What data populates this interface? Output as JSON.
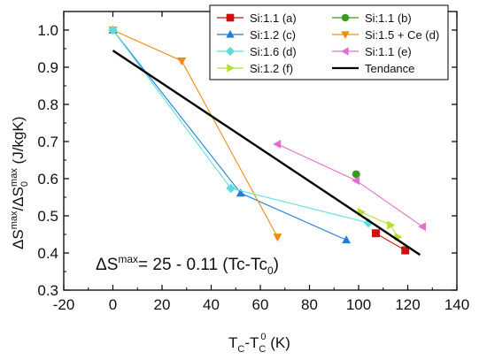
{
  "chart_data": {
    "type": "scatter",
    "xlabel": {
      "main": "T",
      "sub1": "C",
      "dash": "-T",
      "sub2": "C",
      "sup2": "0",
      "unit": " (K)"
    },
    "ylabel": {
      "a": "ΔS",
      "sup1": "max",
      "b": "/ΔS",
      "sub2": "0",
      "sup2": "max",
      "unit": " (J/kgK)"
    },
    "xlim": [
      -20,
      140
    ],
    "ylim": [
      0.3,
      1.05
    ],
    "xticks": [
      -20,
      0,
      20,
      40,
      60,
      80,
      100,
      120,
      140
    ],
    "yticks": [
      0.3,
      0.4,
      0.5,
      0.6,
      0.7,
      0.8,
      0.9,
      1.0
    ],
    "ytick_labels": [
      "0.3",
      "0.4",
      "0.5",
      "0.6",
      "0.7",
      "0.8",
      "0.9",
      "1.0"
    ],
    "legend_position": "top-right",
    "annotation": {
      "a": "ΔS",
      "sup": "max",
      "b": "= 25 - 0.11 (Tc-Tc",
      "sub": "0",
      "c": ")"
    },
    "series": [
      {
        "name": "Si:1.1 (a)",
        "marker": "square",
        "color": "#d01010",
        "x": [
          107,
          119
        ],
        "y": [
          0.453,
          0.407
        ]
      },
      {
        "name": "Si:1.1 (b)",
        "marker": "circle",
        "color": "#3a9a1e",
        "x": [
          99
        ],
        "y": [
          0.612
        ]
      },
      {
        "name": "Si:1.2 (c)",
        "marker": "triangle-up",
        "color": "#1f7fd8",
        "x": [
          0,
          52,
          95
        ],
        "y": [
          1.0,
          0.561,
          0.435
        ]
      },
      {
        "name": "Si:1.5 + Ce (d)",
        "marker": "triangle-down",
        "color": "#f08c10",
        "x": [
          0,
          28,
          67
        ],
        "y": [
          1.0,
          0.917,
          0.443
        ]
      },
      {
        "name": "Si:1.6 (d)",
        "marker": "diamond",
        "color": "#5fdcdc",
        "x": [
          0,
          48,
          104
        ],
        "y": [
          1.0,
          0.574,
          0.481
        ]
      },
      {
        "name": "Si:1.1 (e)",
        "marker": "triangle-left",
        "color": "#e070d0",
        "x": [
          67,
          99,
          126
        ],
        "y": [
          0.693,
          0.595,
          0.471
        ]
      },
      {
        "name": "Si:1.2 (f)",
        "marker": "triangle-right",
        "color": "#b4e030",
        "x": [
          101,
          113,
          116
        ],
        "y": [
          0.51,
          0.475,
          0.443
        ]
      },
      {
        "name": "Tendance",
        "marker": "none",
        "color": "#000000",
        "x": [
          0,
          125
        ],
        "y": [
          0.945,
          0.395
        ]
      }
    ]
  }
}
